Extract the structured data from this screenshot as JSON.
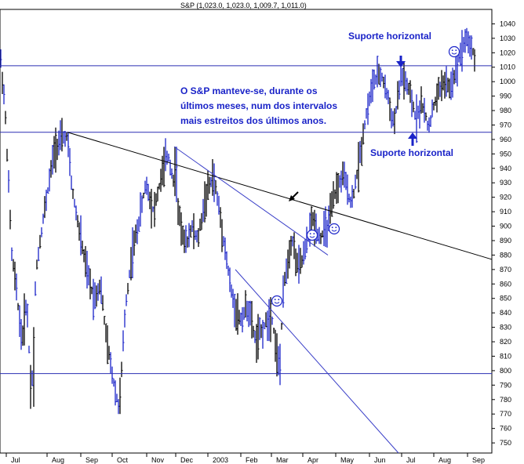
{
  "header": {
    "ohlc_label": "S&P (1,023.0, 1,023.0, 1,009.7, 1,011.0)"
  },
  "colors": {
    "bars": "#1a23c8",
    "bars_dark": "#000000",
    "support_line": "#2a2fb3",
    "trend_line_black": "#000000",
    "trend_line_blue": "#3a3fc8",
    "annotation_text": "#1a23c8",
    "arrow": "#1a23c8"
  },
  "annotations": {
    "top_support": "Suporte horizontal",
    "bottom_support": "Suporte horizontal",
    "comment_line1": "O S&P manteve-se, durante os",
    "comment_line2": "últimos meses, num dos intervalos",
    "comment_line3": "mais estreitos dos últimos anos."
  },
  "chart_data": {
    "type": "bar",
    "title": "S&P (1,023.0, 1,023.0, 1,009.7, 1,011.0)",
    "xlabel": "",
    "ylabel": "",
    "y_axis_position": "right",
    "ylim": [
      743,
      1050
    ],
    "yticks": [
      750,
      760,
      770,
      780,
      790,
      800,
      810,
      820,
      830,
      840,
      850,
      860,
      870,
      880,
      890,
      900,
      910,
      920,
      930,
      940,
      950,
      960,
      970,
      980,
      990,
      1000,
      1010,
      1020,
      1030,
      1040
    ],
    "x_ticks": [
      "Jul",
      "Aug",
      "Sep",
      "Oct",
      "Nov",
      "Dec",
      "2003",
      "Feb",
      "Mar",
      "Apr",
      "May",
      "Jun",
      "Jul",
      "Aug",
      "Sep"
    ],
    "horizontal_lines": [
      1011,
      965,
      798
    ],
    "trend_lines": [
      {
        "style": "black",
        "from": [
          "Aug",
          965
        ],
        "to": [
          "Sep-end",
          877
        ]
      },
      {
        "style": "blue",
        "from": [
          "Dec",
          955
        ],
        "to": [
          "Apr",
          877
        ]
      },
      {
        "style": "blue",
        "from": [
          "Feb",
          870
        ],
        "to": [
          "Jul",
          743
        ]
      }
    ],
    "swing_points": [
      {
        "period": "Jul 2002",
        "value": 1020
      },
      {
        "period": "Jul 2002",
        "value": 775
      },
      {
        "period": "Aug 2002",
        "value": 965
      },
      {
        "period": "Oct 2002",
        "value": 770
      },
      {
        "period": "Dec 2002",
        "value": 955
      },
      {
        "period": "Mar 2003",
        "value": 790
      },
      {
        "period": "Jun 2003",
        "value": 1015
      },
      {
        "period": "Aug 2003",
        "value": 962
      },
      {
        "period": "Sep 2003",
        "value": 1032
      }
    ],
    "last_bar": {
      "open": 1023.0,
      "high": 1023.0,
      "low": 1009.7,
      "close": 1011.0
    }
  }
}
